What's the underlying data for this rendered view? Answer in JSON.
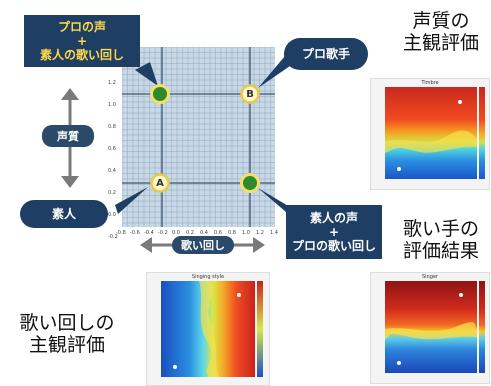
{
  "headings": {
    "voice_quality_eval": "声質の\n主観評価",
    "singer_result": "歌い手の\n評価結果",
    "singing_eval": "歌い回しの\n主観評価"
  },
  "callouts": {
    "pro_voice_pro_singing": "プロの声\n+\n素人の歌い回し",
    "pro_singer": "プロ歌手",
    "amateur": "素人",
    "amateur_voice_pro_singing": "素人の声\n+\nプロの歌い回し"
  },
  "axes": {
    "y_label": "声質",
    "x_label": "歌い回し",
    "x_ticks": [
      "-0.8",
      "-0.6",
      "-0.4",
      "-0.2",
      "0.0",
      "0.2",
      "0.4",
      "0.6",
      "0.8",
      "1.0",
      "1.2",
      "1.4"
    ],
    "y_ticks": [
      "1.2",
      "1.0",
      "0.8",
      "0.6",
      "0.4",
      "0.2",
      "0.0",
      "-0.2"
    ]
  },
  "markers": {
    "A": "A",
    "B": "B"
  },
  "heatmaps": {
    "voice_title": "Timbre",
    "singer_title": "Singer",
    "singing_title": "Singing style"
  },
  "colors": {
    "callout_bg": "#1e3f63",
    "callout_text": "#ffd84a",
    "grid_bg": "#c9d8e6",
    "marker_green": "#2d8a2d",
    "marker_ring": "#f3df6a"
  }
}
